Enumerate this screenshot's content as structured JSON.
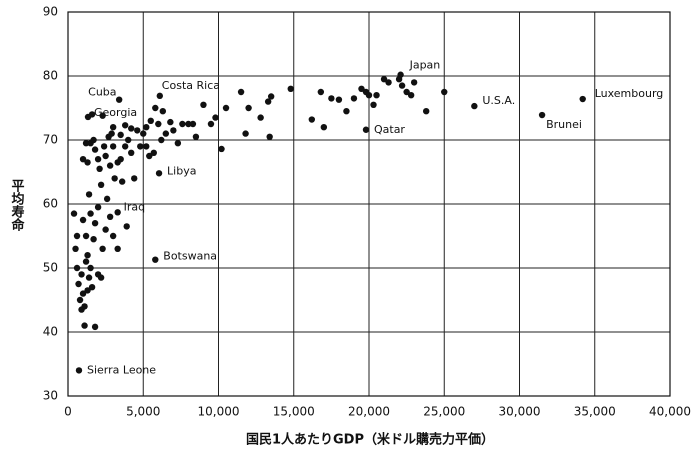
{
  "chart_data": {
    "type": "scatter",
    "x_label": "国民1人あたりGDP（米ドル購売力平価）",
    "y_label": "平均寿命",
    "xlim": [
      0,
      40000
    ],
    "xticks": [
      0,
      {
        "value": 5000,
        "label": "5,000"
      },
      {
        "value": 10000,
        "label": "10,000"
      },
      {
        "value": 15000,
        "label": "15,000"
      },
      {
        "value": 20000,
        "label": "20,000"
      },
      {
        "value": 25000,
        "label": "25,000"
      },
      {
        "value": 30000,
        "label": "30,000"
      },
      {
        "value": 35000,
        "label": "35,000"
      },
      {
        "value": 40000,
        "label": "40,000"
      }
    ],
    "ylim": [
      30,
      90
    ],
    "yticks": [
      30,
      40,
      50,
      60,
      70,
      80,
      90
    ],
    "grid": true,
    "color": "#111111",
    "x": [
      730,
      3400,
      1330,
      6100,
      6050,
      3300,
      5800,
      22100,
      27000,
      19800,
      31500,
      34200,
      10500,
      11500,
      12000,
      13500,
      13300,
      14800,
      16200,
      16800,
      17000,
      17500,
      18000,
      18500,
      19000,
      19500,
      19800,
      20000,
      20300,
      20500,
      21000,
      21300,
      22000,
      22200,
      22500,
      22800,
      23000,
      23800,
      25000,
      13400,
      11800,
      10200,
      9500,
      9000,
      9800,
      12800,
      5000,
      5200,
      5500,
      5800,
      6000,
      6300,
      6500,
      6800,
      7000,
      7300,
      7600,
      8000,
      8500,
      8300,
      6200,
      5700,
      5400,
      5200,
      1000,
      1300,
      1500,
      1700,
      1800,
      2000,
      2100,
      2200,
      2400,
      2500,
      2700,
      2800,
      3000,
      3100,
      3300,
      3500,
      3600,
      3800,
      4000,
      4200,
      4400,
      4600,
      4800,
      1400,
      2000,
      2600,
      3000,
      3800,
      4200,
      1600,
      2300,
      1200,
      2900,
      3500,
      400,
      500,
      600,
      700,
      800,
      900,
      1000,
      1100,
      1000,
      1200,
      1300,
      1400,
      1500,
      1600,
      1700,
      1800,
      2000,
      2200,
      2500,
      2800,
      3000,
      1100,
      1800,
      900,
      1200,
      1500,
      2300,
      3900,
      3300,
      600,
      1300
    ],
    "values": [
      34,
      76.3,
      73.6,
      76.9,
      64.8,
      58.7,
      51.3,
      80.2,
      75.3,
      71.6,
      73.9,
      76.4,
      75,
      77.5,
      75,
      76.8,
      76,
      78,
      73.2,
      77.5,
      72,
      76.5,
      76.3,
      74.5,
      76.5,
      78,
      77.5,
      77,
      75.5,
      77,
      79.5,
      79,
      79.5,
      78.5,
      77.5,
      77,
      79,
      74.5,
      77.5,
      70.5,
      71,
      68.6,
      72.5,
      75.5,
      73.5,
      73.5,
      71,
      72,
      73,
      75,
      72.5,
      74.5,
      71,
      72.8,
      71.5,
      69.5,
      72.5,
      72.5,
      70.5,
      72.5,
      70,
      68,
      67.5,
      69,
      67,
      66.5,
      69.5,
      70,
      68.5,
      67,
      65.5,
      63,
      69,
      67.5,
      70.5,
      66,
      69,
      64,
      66.5,
      67,
      63.5,
      69,
      70,
      68,
      64,
      71.5,
      69,
      61.5,
      59.5,
      60.8,
      72,
      72.3,
      71.8,
      74,
      73.8,
      69.5,
      71,
      70.8,
      58.5,
      53,
      50,
      47.5,
      45,
      49,
      46,
      44,
      57.5,
      55,
      52,
      48.5,
      50,
      47,
      54.5,
      57,
      49,
      48.5,
      56,
      58,
      55,
      41,
      40.8,
      43.5,
      51,
      58.5,
      53,
      56.5,
      53,
      55,
      46.5
    ],
    "point_labels": [
      "Sierra Leone",
      "Cuba",
      "Georgia",
      "Costa Rica",
      "Libya",
      "Iraq",
      "Botswana",
      "Japan",
      "U.S.A.",
      "Qatar",
      "Brunei",
      "Luxembourg",
      null,
      null,
      null,
      null,
      null,
      null,
      null,
      null,
      null,
      null,
      null,
      null,
      null,
      null,
      null,
      null,
      null,
      null,
      null,
      null,
      null,
      null,
      null,
      null,
      null,
      null,
      null,
      null,
      null,
      null,
      null,
      null,
      null,
      null,
      null,
      null,
      null,
      null,
      null,
      null,
      null,
      null,
      null,
      null,
      null,
      null,
      null,
      null,
      null,
      null,
      null,
      null,
      null,
      null,
      null,
      null,
      null,
      null,
      null,
      null,
      null,
      null,
      null,
      null,
      null,
      null,
      null,
      null,
      null,
      null,
      null,
      null,
      null,
      null,
      null,
      null,
      null,
      null,
      null,
      null,
      null,
      null,
      null,
      null,
      null,
      null,
      null,
      null,
      null,
      null,
      null,
      null,
      null,
      null,
      null,
      null,
      null,
      null,
      null,
      null,
      null,
      null,
      null,
      null,
      null,
      null,
      null,
      null,
      null,
      null,
      null,
      null,
      null,
      null,
      null,
      null,
      null
    ]
  }
}
